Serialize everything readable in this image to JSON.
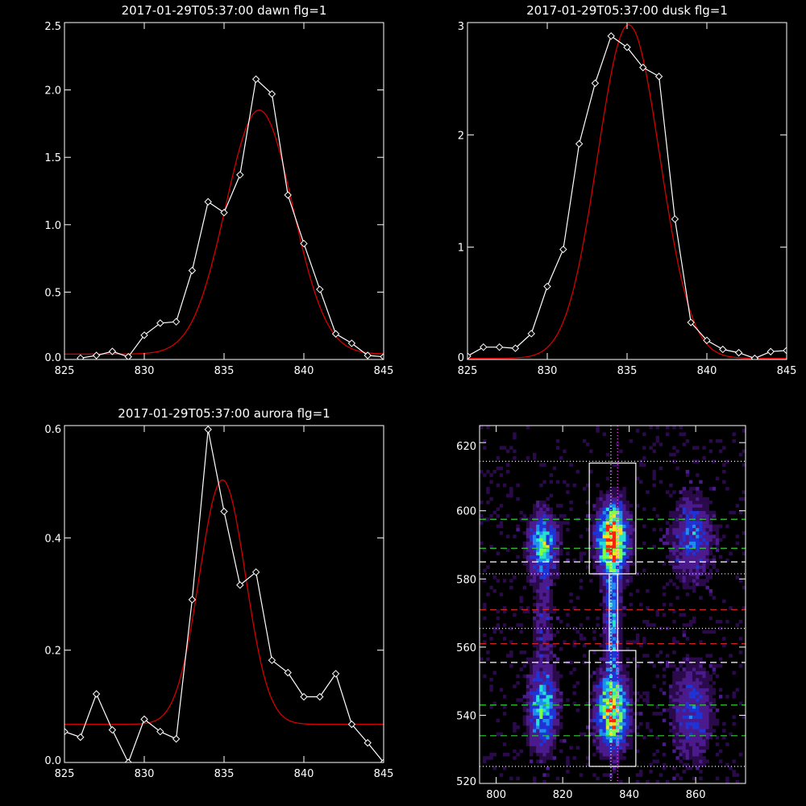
{
  "chart_data": [
    {
      "type": "line",
      "title": "2017-01-29T05:37:00 dawn flg=1",
      "xlim": [
        825,
        845
      ],
      "ylim": [
        0,
        2.5
      ],
      "xticks": [
        "825",
        "830",
        "835",
        "840",
        "845"
      ],
      "xtick_values": [
        825,
        830,
        835,
        840,
        845
      ],
      "yticks": [
        "0.0",
        "0.5",
        "1.0",
        "1.5",
        "2.0",
        "2.5"
      ],
      "ytick_values": [
        0,
        0.5,
        1.0,
        1.5,
        2.0,
        2.5
      ],
      "grid": false,
      "series": [
        {
          "kind": "observed",
          "color": "#ffffff",
          "marker": "diamond",
          "x": [
            826,
            827,
            828,
            829,
            830,
            831,
            832,
            833,
            834,
            835,
            836,
            837,
            838,
            839,
            840,
            841,
            842,
            843,
            844,
            845
          ],
          "y": [
            0.01,
            0.03,
            0.06,
            0.02,
            0.18,
            0.27,
            0.28,
            0.66,
            1.17,
            1.09,
            1.37,
            2.08,
            1.97,
            1.22,
            0.86,
            0.52,
            0.19,
            0.12,
            0.03,
            0.02
          ]
        },
        {
          "kind": "gaussian_fit",
          "color": "#d40000",
          "amplitude": 1.81,
          "center": 837.2,
          "sigma": 2.1,
          "baseline": 0.04
        }
      ]
    },
    {
      "type": "line",
      "title": "2017-01-29T05:37:00 dusk flg=1",
      "xlim": [
        825,
        845
      ],
      "ylim": [
        0,
        3
      ],
      "xticks": [
        "825",
        "830",
        "835",
        "840",
        "845"
      ],
      "xtick_values": [
        825,
        830,
        835,
        840,
        845
      ],
      "yticks": [
        "0",
        "1",
        "2",
        "3"
      ],
      "ytick_values": [
        0,
        1,
        2,
        3
      ],
      "grid": false,
      "series": [
        {
          "kind": "observed",
          "color": "#ffffff",
          "marker": "diamond",
          "x": [
            825,
            826,
            827,
            828,
            829,
            830,
            831,
            832,
            833,
            834,
            835,
            836,
            837,
            838,
            839,
            840,
            841,
            842,
            843,
            844,
            845
          ],
          "y": [
            0.03,
            0.11,
            0.11,
            0.1,
            0.23,
            0.65,
            0.98,
            1.92,
            2.46,
            2.88,
            2.78,
            2.6,
            2.52,
            1.25,
            0.33,
            0.17,
            0.09,
            0.06,
            0.01,
            0.07,
            0.08
          ]
        },
        {
          "kind": "gaussian_fit",
          "color": "#d40000",
          "amplitude": 2.97,
          "center": 835.1,
          "sigma": 1.95,
          "baseline": 0.01
        }
      ]
    },
    {
      "type": "line",
      "title": "2017-01-29T05:37:00 aurora flg=1",
      "xlim": [
        825,
        845
      ],
      "ylim": [
        0,
        0.6
      ],
      "xticks": [
        "825",
        "830",
        "835",
        "840",
        "845"
      ],
      "xtick_values": [
        825,
        830,
        835,
        840,
        845
      ],
      "yticks": [
        "0.0",
        "0.2",
        "0.4",
        "0.6"
      ],
      "ytick_values": [
        0,
        0.2,
        0.4,
        0.6
      ],
      "grid": false,
      "series": [
        {
          "kind": "observed",
          "color": "#ffffff",
          "marker": "diamond",
          "x": [
            825,
            826,
            827,
            828,
            829,
            830,
            831,
            832,
            833,
            834,
            835,
            836,
            837,
            838,
            839,
            840,
            841,
            842,
            843,
            844,
            845
          ],
          "y": [
            0.055,
            0.045,
            0.122,
            0.058,
            0.0,
            0.077,
            0.055,
            0.042,
            0.29,
            0.593,
            0.447,
            0.316,
            0.339,
            0.182,
            0.16,
            0.117,
            0.117,
            0.158,
            0.068,
            0.035,
            0.0
          ]
        },
        {
          "kind": "gaussian_fit",
          "color": "#d40000",
          "amplitude": 0.435,
          "center": 834.9,
          "sigma": 1.45,
          "baseline": 0.068
        }
      ]
    },
    {
      "type": "heatmap",
      "title": "",
      "xlim": [
        795,
        875
      ],
      "ylim": [
        520,
        625
      ],
      "xticks": [
        "800",
        "820",
        "840",
        "860"
      ],
      "xtick_values": [
        800,
        820,
        840,
        860
      ],
      "yticks": [
        "520",
        "540",
        "560",
        "580",
        "600",
        "620"
      ],
      "ytick_values": [
        520,
        540,
        560,
        580,
        600,
        620
      ],
      "colormap": [
        "#2a0a4a",
        "#4b1a8c",
        "#1f33d6",
        "#1f8cf0",
        "#27e0d2",
        "#7dff4a",
        "#ffe020",
        "#ff2010"
      ],
      "hot_spots": [
        {
          "x": 835,
          "y": 592,
          "sx": 3.0,
          "sy": 6.5,
          "peak": 1.0
        },
        {
          "x": 835,
          "y": 541,
          "sx": 3.0,
          "sy": 7.0,
          "peak": 0.9
        },
        {
          "x": 814,
          "y": 590,
          "sx": 2.8,
          "sy": 6.0,
          "peak": 0.65
        },
        {
          "x": 814,
          "y": 542,
          "sx": 2.8,
          "sy": 7.5,
          "peak": 0.6
        },
        {
          "x": 859,
          "y": 592,
          "sx": 4.0,
          "sy": 8.0,
          "peak": 0.35
        },
        {
          "x": 859,
          "y": 541,
          "sx": 4.0,
          "sy": 9.0,
          "peak": 0.32
        },
        {
          "x": 835,
          "y": 568,
          "sx": 1.5,
          "sy": 14.0,
          "peak": 0.45
        },
        {
          "x": 814,
          "y": 568,
          "sx": 2.0,
          "sy": 8.0,
          "peak": 0.2
        }
      ],
      "boxes": [
        {
          "x0": 828,
          "x1": 842,
          "y0": 581.5,
          "y1": 614
        },
        {
          "x0": 828,
          "x1": 842,
          "y0": 525,
          "y1": 559
        },
        {
          "x0": 834,
          "x1": 836.5,
          "y0": 559,
          "y1": 581.5
        }
      ],
      "hlines": [
        {
          "y": 614.5,
          "style": "dotted",
          "color": "#ffffff"
        },
        {
          "y": 597.5,
          "style": "dashed",
          "color": "#33cc33"
        },
        {
          "y": 589,
          "style": "dashed",
          "color": "#33cc33"
        },
        {
          "y": 585,
          "style": "dashed",
          "color": "#ffffff"
        },
        {
          "y": 581.5,
          "style": "dotted",
          "color": "#ffffff"
        },
        {
          "y": 571,
          "style": "dashed",
          "color": "#cc2222"
        },
        {
          "y": 565.5,
          "style": "dotted",
          "color": "#ffffff"
        },
        {
          "y": 561,
          "style": "dashed",
          "color": "#cc2222"
        },
        {
          "y": 555.5,
          "style": "dashed",
          "color": "#ffffff"
        },
        {
          "y": 543,
          "style": "dashed",
          "color": "#33cc33"
        },
        {
          "y": 534,
          "style": "dashed",
          "color": "#33cc33"
        },
        {
          "y": 525,
          "style": "dotted",
          "color": "#ffffff"
        }
      ],
      "vlines": [
        {
          "x": 834.5,
          "style": "dotted",
          "color": "#ffffff"
        },
        {
          "x": 836.5,
          "style": "dotted",
          "color": "#ff55ff"
        }
      ]
    }
  ]
}
